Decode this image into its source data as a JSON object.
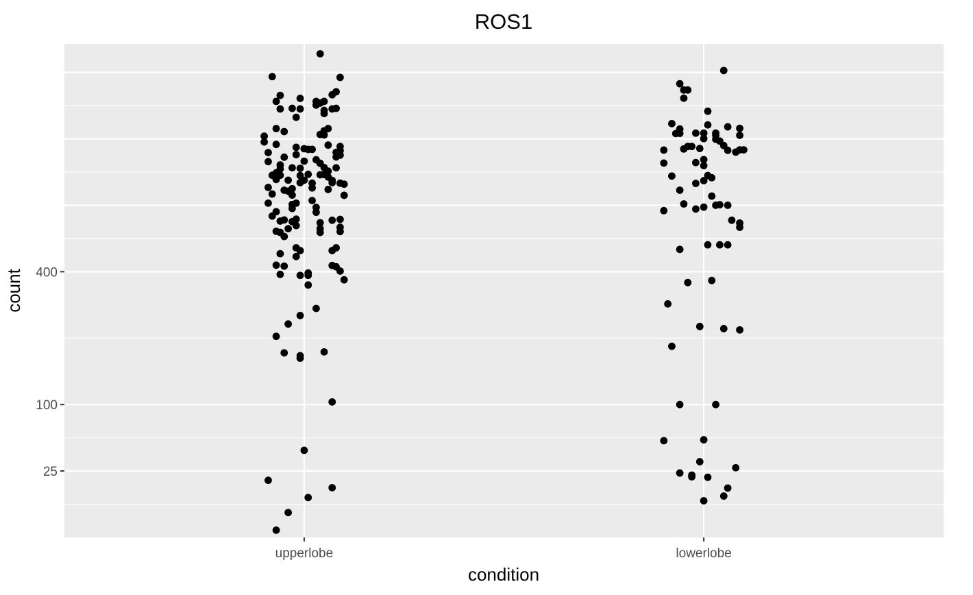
{
  "chart_data": {
    "type": "scatter",
    "title": "ROS1",
    "xlabel": "condition",
    "ylabel": "count",
    "categories": [
      "upperlobe",
      "lowerlobe"
    ],
    "y_scale": "sqrt",
    "y_ticks": [
      25,
      100,
      400
    ],
    "y_tick_labels": [
      "25",
      "100",
      "400"
    ],
    "ylim": [
      0,
      1380
    ],
    "grid": true,
    "series": [
      {
        "category": "upperlobe",
        "points": [
          {
            "x": 0.04,
            "y": 1325
          },
          {
            "x": -0.08,
            "y": 1203
          },
          {
            "x": 0.09,
            "y": 1199
          },
          {
            "x": 0.08,
            "y": 1125
          },
          {
            "x": 0.07,
            "y": 1110
          },
          {
            "x": -0.06,
            "y": 1107
          },
          {
            "x": -0.07,
            "y": 1077
          },
          {
            "x": -0.01,
            "y": 1092
          },
          {
            "x": 0.03,
            "y": 1077
          },
          {
            "x": 0.04,
            "y": 1069
          },
          {
            "x": 0.05,
            "y": 1077
          },
          {
            "x": 0.03,
            "y": 1059
          },
          {
            "x": -0.03,
            "y": 1043
          },
          {
            "x": -0.06,
            "y": 1040
          },
          {
            "x": -0.01,
            "y": 1040
          },
          {
            "x": 0.05,
            "y": 1033
          },
          {
            "x": 0.07,
            "y": 1040
          },
          {
            "x": 0.08,
            "y": 1043
          },
          {
            "x": 0.05,
            "y": 1018
          },
          {
            "x": -0.02,
            "y": 1000
          },
          {
            "x": -0.07,
            "y": 947
          },
          {
            "x": 0.06,
            "y": 947
          },
          {
            "x": 0.05,
            "y": 937
          },
          {
            "x": -0.05,
            "y": 933
          },
          {
            "x": 0.04,
            "y": 920
          },
          {
            "x": 0.05,
            "y": 918
          },
          {
            "x": -0.1,
            "y": 912
          },
          {
            "x": -0.1,
            "y": 886
          },
          {
            "x": -0.07,
            "y": 875
          },
          {
            "x": -0.02,
            "y": 862
          },
          {
            "x": 0.06,
            "y": 872
          },
          {
            "x": 0.09,
            "y": 866
          },
          {
            "x": 0.0,
            "y": 856
          },
          {
            "x": 0.01,
            "y": 853
          },
          {
            "x": 0.02,
            "y": 853
          },
          {
            "x": 0.09,
            "y": 848
          },
          {
            "x": -0.09,
            "y": 839
          },
          {
            "x": -0.02,
            "y": 830
          },
          {
            "x": 0.08,
            "y": 840
          },
          {
            "x": 0.09,
            "y": 828
          },
          {
            "x": -0.05,
            "y": 819
          },
          {
            "x": 0.03,
            "y": 808
          },
          {
            "x": 0.08,
            "y": 820
          },
          {
            "x": -0.09,
            "y": 800
          },
          {
            "x": 0.0,
            "y": 802
          },
          {
            "x": 0.04,
            "y": 793
          },
          {
            "x": -0.06,
            "y": 786
          },
          {
            "x": -0.03,
            "y": 774
          },
          {
            "x": -0.06,
            "y": 769
          },
          {
            "x": -0.01,
            "y": 772
          },
          {
            "x": 0.05,
            "y": 775
          },
          {
            "x": 0.06,
            "y": 760
          },
          {
            "x": 0.08,
            "y": 774
          },
          {
            "x": -0.07,
            "y": 753
          },
          {
            "x": -0.08,
            "y": 743
          },
          {
            "x": -0.06,
            "y": 743
          },
          {
            "x": -0.01,
            "y": 742
          },
          {
            "x": 0.01,
            "y": 747
          },
          {
            "x": 0.05,
            "y": 746
          },
          {
            "x": 0.06,
            "y": 736
          },
          {
            "x": 0.04,
            "y": 745
          },
          {
            "x": -0.07,
            "y": 726
          },
          {
            "x": 0.0,
            "y": 723
          },
          {
            "x": 0.07,
            "y": 722
          },
          {
            "x": -0.04,
            "y": 723
          },
          {
            "x": -0.01,
            "y": 713
          },
          {
            "x": 0.02,
            "y": 711
          },
          {
            "x": 0.09,
            "y": 711
          },
          {
            "x": 0.1,
            "y": 707
          },
          {
            "x": 0.07,
            "y": 713
          },
          {
            "x": -0.09,
            "y": 694
          },
          {
            "x": -0.05,
            "y": 683
          },
          {
            "x": -0.03,
            "y": 689
          },
          {
            "x": -0.04,
            "y": 679
          },
          {
            "x": 0.02,
            "y": 692
          },
          {
            "x": 0.06,
            "y": 686
          },
          {
            "x": -0.08,
            "y": 668
          },
          {
            "x": -0.03,
            "y": 664
          },
          {
            "x": 0.1,
            "y": 663
          },
          {
            "x": 0.02,
            "y": 643
          },
          {
            "x": -0.09,
            "y": 633
          },
          {
            "x": -0.03,
            "y": 628
          },
          {
            "x": -0.02,
            "y": 633
          },
          {
            "x": -0.03,
            "y": 613
          },
          {
            "x": 0.03,
            "y": 617
          },
          {
            "x": -0.07,
            "y": 601
          },
          {
            "x": -0.08,
            "y": 585
          },
          {
            "x": 0.03,
            "y": 599
          },
          {
            "x": -0.05,
            "y": 571
          },
          {
            "x": -0.02,
            "y": 574
          },
          {
            "x": -0.03,
            "y": 565
          },
          {
            "x": -0.06,
            "y": 567
          },
          {
            "x": 0.04,
            "y": 561
          },
          {
            "x": 0.09,
            "y": 573
          },
          {
            "x": 0.07,
            "y": 570
          },
          {
            "x": -0.02,
            "y": 551
          },
          {
            "x": 0.09,
            "y": 545
          },
          {
            "x": -0.04,
            "y": 540
          },
          {
            "x": -0.07,
            "y": 531
          },
          {
            "x": -0.06,
            "y": 527
          },
          {
            "x": -0.05,
            "y": 513
          },
          {
            "x": 0.04,
            "y": 540
          },
          {
            "x": 0.04,
            "y": 527
          },
          {
            "x": 0.09,
            "y": 530
          },
          {
            "x": -0.02,
            "y": 475
          },
          {
            "x": -0.01,
            "y": 466
          },
          {
            "x": -0.06,
            "y": 456
          },
          {
            "x": 0.08,
            "y": 475
          },
          {
            "x": 0.07,
            "y": 466
          },
          {
            "x": -0.02,
            "y": 447
          },
          {
            "x": -0.07,
            "y": 420
          },
          {
            "x": -0.05,
            "y": 417
          },
          {
            "x": 0.01,
            "y": 396
          },
          {
            "x": 0.01,
            "y": 389
          },
          {
            "x": -0.01,
            "y": 389
          },
          {
            "x": -0.06,
            "y": 392
          },
          {
            "x": 0.07,
            "y": 419
          },
          {
            "x": 0.08,
            "y": 415
          },
          {
            "x": 0.09,
            "y": 402
          },
          {
            "x": 0.1,
            "y": 376
          },
          {
            "x": 0.01,
            "y": 361
          },
          {
            "x": -0.01,
            "y": 279
          },
          {
            "x": 0.03,
            "y": 297
          },
          {
            "x": -0.04,
            "y": 258
          },
          {
            "x": -0.07,
            "y": 229
          },
          {
            "x": -0.05,
            "y": 193
          },
          {
            "x": 0.05,
            "y": 195
          },
          {
            "x": -0.01,
            "y": 187
          },
          {
            "x": -0.01,
            "y": 182
          },
          {
            "x": 0.07,
            "y": 104
          },
          {
            "x": 0.0,
            "y": 43
          },
          {
            "x": -0.09,
            "y": 18.5
          },
          {
            "x": 0.07,
            "y": 14
          },
          {
            "x": 0.01,
            "y": 9
          },
          {
            "x": -0.04,
            "y": 3.5
          },
          {
            "x": -0.07,
            "y": 0.3
          }
        ]
      },
      {
        "category": "lowerlobe",
        "points": [
          {
            "x": 0.05,
            "y": 1235
          },
          {
            "x": -0.06,
            "y": 1166
          },
          {
            "x": -0.05,
            "y": 1134
          },
          {
            "x": -0.04,
            "y": 1134
          },
          {
            "x": -0.05,
            "y": 1093
          },
          {
            "x": 0.01,
            "y": 1029
          },
          {
            "x": -0.08,
            "y": 970
          },
          {
            "x": 0.01,
            "y": 964
          },
          {
            "x": 0.06,
            "y": 955
          },
          {
            "x": 0.09,
            "y": 948
          },
          {
            "x": -0.06,
            "y": 945
          },
          {
            "x": -0.07,
            "y": 924
          },
          {
            "x": -0.02,
            "y": 926
          },
          {
            "x": 0.0,
            "y": 926
          },
          {
            "x": 0.03,
            "y": 926
          },
          {
            "x": 0.03,
            "y": 916
          },
          {
            "x": -0.06,
            "y": 925
          },
          {
            "x": 0.0,
            "y": 901
          },
          {
            "x": 0.03,
            "y": 898
          },
          {
            "x": 0.04,
            "y": 890
          },
          {
            "x": 0.09,
            "y": 916
          },
          {
            "x": -0.03,
            "y": 866
          },
          {
            "x": -0.04,
            "y": 866
          },
          {
            "x": -0.05,
            "y": 855
          },
          {
            "x": -0.01,
            "y": 857
          },
          {
            "x": 0.05,
            "y": 870
          },
          {
            "x": 0.09,
            "y": 851
          },
          {
            "x": 0.1,
            "y": 851
          },
          {
            "x": 0.08,
            "y": 841
          },
          {
            "x": -0.1,
            "y": 850
          },
          {
            "x": -0.05,
            "y": 855
          },
          {
            "x": 0.06,
            "y": 849
          },
          {
            "x": -0.1,
            "y": 794
          },
          {
            "x": -0.02,
            "y": 796
          },
          {
            "x": 0.0,
            "y": 809
          },
          {
            "x": 0.0,
            "y": 783
          },
          {
            "x": -0.08,
            "y": 740
          },
          {
            "x": 0.01,
            "y": 742
          },
          {
            "x": 0.02,
            "y": 733
          },
          {
            "x": -0.02,
            "y": 710
          },
          {
            "x": 0.0,
            "y": 721
          },
          {
            "x": -0.06,
            "y": 683
          },
          {
            "x": 0.02,
            "y": 660
          },
          {
            "x": -0.05,
            "y": 630
          },
          {
            "x": 0.04,
            "y": 627
          },
          {
            "x": 0.03,
            "y": 625
          },
          {
            "x": 0.06,
            "y": 625
          },
          {
            "x": -0.02,
            "y": 611
          },
          {
            "x": 0.0,
            "y": 618
          },
          {
            "x": -0.1,
            "y": 605
          },
          {
            "x": 0.07,
            "y": 570
          },
          {
            "x": 0.09,
            "y": 560
          },
          {
            "x": 0.09,
            "y": 545
          },
          {
            "x": 0.01,
            "y": 485
          },
          {
            "x": 0.04,
            "y": 485
          },
          {
            "x": 0.06,
            "y": 485
          },
          {
            "x": -0.06,
            "y": 470
          },
          {
            "x": -0.04,
            "y": 368
          },
          {
            "x": 0.02,
            "y": 374
          },
          {
            "x": -0.09,
            "y": 309
          },
          {
            "x": -0.01,
            "y": 252
          },
          {
            "x": 0.05,
            "y": 247
          },
          {
            "x": 0.09,
            "y": 244
          },
          {
            "x": -0.08,
            "y": 207
          },
          {
            "x": -0.06,
            "y": 100
          },
          {
            "x": 0.03,
            "y": 100
          },
          {
            "x": -0.1,
            "y": 53
          },
          {
            "x": 0.0,
            "y": 54
          },
          {
            "x": -0.01,
            "y": 32.5
          },
          {
            "x": 0.08,
            "y": 27.5
          },
          {
            "x": -0.06,
            "y": 23.5
          },
          {
            "x": -0.03,
            "y": 22
          },
          {
            "x": -0.03,
            "y": 20.8
          },
          {
            "x": 0.01,
            "y": 20.5
          },
          {
            "x": 0.06,
            "y": 13.8
          },
          {
            "x": 0.05,
            "y": 9.7
          },
          {
            "x": 0.0,
            "y": 7.6
          }
        ]
      }
    ]
  }
}
